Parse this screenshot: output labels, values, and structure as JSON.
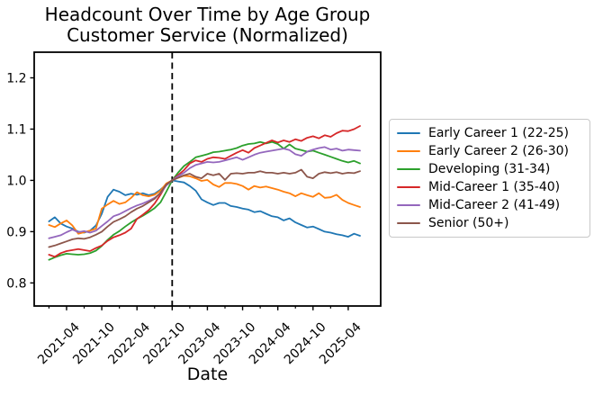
{
  "chart_data": {
    "type": "line",
    "title": "Headcount Over Time by Age Group",
    "subtitle": "Customer Service (Normalized)",
    "xlabel": "Date",
    "ylabel": "",
    "grid": false,
    "legend_position": "right-outside",
    "ylim": [
      0.755,
      1.25
    ],
    "yticks": [
      0.8,
      0.9,
      1.0,
      1.1,
      1.2
    ],
    "xticks": [
      "2021-04",
      "2021-10",
      "2022-04",
      "2022-10",
      "2023-04",
      "2023-10",
      "2024-04",
      "2024-10",
      "2025-04"
    ],
    "vline": {
      "x": "2022-10",
      "style": "dashed",
      "color": "#000000"
    },
    "x": [
      "2021-01",
      "2021-02",
      "2021-03",
      "2021-04",
      "2021-05",
      "2021-06",
      "2021-07",
      "2021-08",
      "2021-09",
      "2021-10",
      "2021-11",
      "2021-12",
      "2022-01",
      "2022-02",
      "2022-03",
      "2022-04",
      "2022-05",
      "2022-06",
      "2022-07",
      "2022-08",
      "2022-09",
      "2022-10",
      "2022-11",
      "2022-12",
      "2023-01",
      "2023-02",
      "2023-03",
      "2023-04",
      "2023-05",
      "2023-06",
      "2023-07",
      "2023-08",
      "2023-09",
      "2023-10",
      "2023-11",
      "2023-12",
      "2024-01",
      "2024-02",
      "2024-03",
      "2024-04",
      "2024-05",
      "2024-06",
      "2024-07",
      "2024-08",
      "2024-09",
      "2024-10",
      "2024-11",
      "2024-12",
      "2025-01",
      "2025-02",
      "2025-03",
      "2025-04",
      "2025-05",
      "2025-06"
    ],
    "series": [
      {
        "name": "Early Career 1 (22-25)",
        "color": "#1f77b4",
        "values": [
          0.92,
          0.928,
          0.916,
          0.91,
          0.906,
          0.9,
          0.898,
          0.902,
          0.912,
          0.935,
          0.968,
          0.982,
          0.978,
          0.971,
          0.974,
          0.972,
          0.975,
          0.971,
          0.974,
          0.982,
          0.992,
          1.0,
          0.998,
          0.996,
          0.989,
          0.98,
          0.963,
          0.957,
          0.952,
          0.956,
          0.956,
          0.95,
          0.948,
          0.945,
          0.943,
          0.938,
          0.94,
          0.935,
          0.93,
          0.928,
          0.922,
          0.926,
          0.918,
          0.913,
          0.908,
          0.91,
          0.905,
          0.9,
          0.898,
          0.895,
          0.893,
          0.89,
          0.896,
          0.892
        ]
      },
      {
        "name": "Early Career 2 (26-30)",
        "color": "#ff7f0e",
        "values": [
          0.913,
          0.909,
          0.916,
          0.922,
          0.912,
          0.896,
          0.899,
          0.902,
          0.906,
          0.945,
          0.953,
          0.96,
          0.954,
          0.957,
          0.966,
          0.977,
          0.971,
          0.969,
          0.972,
          0.98,
          0.994,
          1.0,
          1.005,
          1.009,
          1.008,
          1.004,
          0.999,
          1.001,
          0.992,
          0.987,
          0.995,
          0.995,
          0.993,
          0.989,
          0.982,
          0.989,
          0.986,
          0.988,
          0.985,
          0.982,
          0.978,
          0.975,
          0.969,
          0.975,
          0.971,
          0.968,
          0.975,
          0.966,
          0.967,
          0.972,
          0.962,
          0.956,
          0.952,
          0.948
        ]
      },
      {
        "name": "Developing (31-34)",
        "color": "#2ca02c",
        "values": [
          0.845,
          0.85,
          0.854,
          0.857,
          0.856,
          0.855,
          0.856,
          0.858,
          0.863,
          0.872,
          0.884,
          0.894,
          0.901,
          0.91,
          0.918,
          0.925,
          0.931,
          0.938,
          0.946,
          0.957,
          0.978,
          1.0,
          1.015,
          1.028,
          1.036,
          1.045,
          1.048,
          1.051,
          1.055,
          1.056,
          1.058,
          1.06,
          1.063,
          1.068,
          1.071,
          1.072,
          1.075,
          1.072,
          1.075,
          1.071,
          1.062,
          1.07,
          1.062,
          1.059,
          1.056,
          1.058,
          1.054,
          1.05,
          1.046,
          1.042,
          1.038,
          1.035,
          1.038,
          1.033
        ]
      },
      {
        "name": "Mid-Career 1 (35-40)",
        "color": "#d62728",
        "values": [
          0.855,
          0.851,
          0.858,
          0.862,
          0.864,
          0.866,
          0.864,
          0.862,
          0.868,
          0.873,
          0.882,
          0.889,
          0.893,
          0.898,
          0.906,
          0.925,
          0.933,
          0.942,
          0.955,
          0.972,
          0.992,
          1.0,
          1.01,
          1.02,
          1.033,
          1.039,
          1.036,
          1.042,
          1.045,
          1.044,
          1.042,
          1.048,
          1.054,
          1.059,
          1.054,
          1.063,
          1.068,
          1.073,
          1.078,
          1.074,
          1.078,
          1.075,
          1.08,
          1.077,
          1.083,
          1.086,
          1.082,
          1.088,
          1.085,
          1.092,
          1.097,
          1.096,
          1.1,
          1.106
        ]
      },
      {
        "name": "Mid-Career 2 (41-49)",
        "color": "#9467bd",
        "values": [
          0.887,
          0.89,
          0.893,
          0.899,
          0.904,
          0.899,
          0.901,
          0.898,
          0.902,
          0.911,
          0.92,
          0.93,
          0.934,
          0.94,
          0.946,
          0.951,
          0.955,
          0.96,
          0.966,
          0.975,
          0.99,
          1.0,
          1.008,
          1.015,
          1.024,
          1.03,
          1.033,
          1.036,
          1.035,
          1.036,
          1.039,
          1.042,
          1.045,
          1.04,
          1.045,
          1.05,
          1.054,
          1.056,
          1.058,
          1.06,
          1.062,
          1.059,
          1.051,
          1.048,
          1.056,
          1.06,
          1.063,
          1.065,
          1.06,
          1.062,
          1.058,
          1.06,
          1.059,
          1.058
        ]
      },
      {
        "name": "Senior (50+)",
        "color": "#8c564b",
        "values": [
          0.87,
          0.873,
          0.877,
          0.881,
          0.885,
          0.887,
          0.886,
          0.889,
          0.894,
          0.9,
          0.91,
          0.919,
          0.924,
          0.93,
          0.938,
          0.945,
          0.95,
          0.957,
          0.964,
          0.976,
          0.992,
          1.0,
          1.005,
          1.01,
          1.013,
          1.007,
          1.004,
          1.013,
          1.01,
          1.013,
          1.001,
          1.013,
          1.014,
          1.013,
          1.015,
          1.015,
          1.018,
          1.015,
          1.015,
          1.013,
          1.015,
          1.013,
          1.015,
          1.021,
          1.007,
          1.004,
          1.013,
          1.016,
          1.014,
          1.016,
          1.013,
          1.015,
          1.014,
          1.018
        ]
      }
    ]
  }
}
